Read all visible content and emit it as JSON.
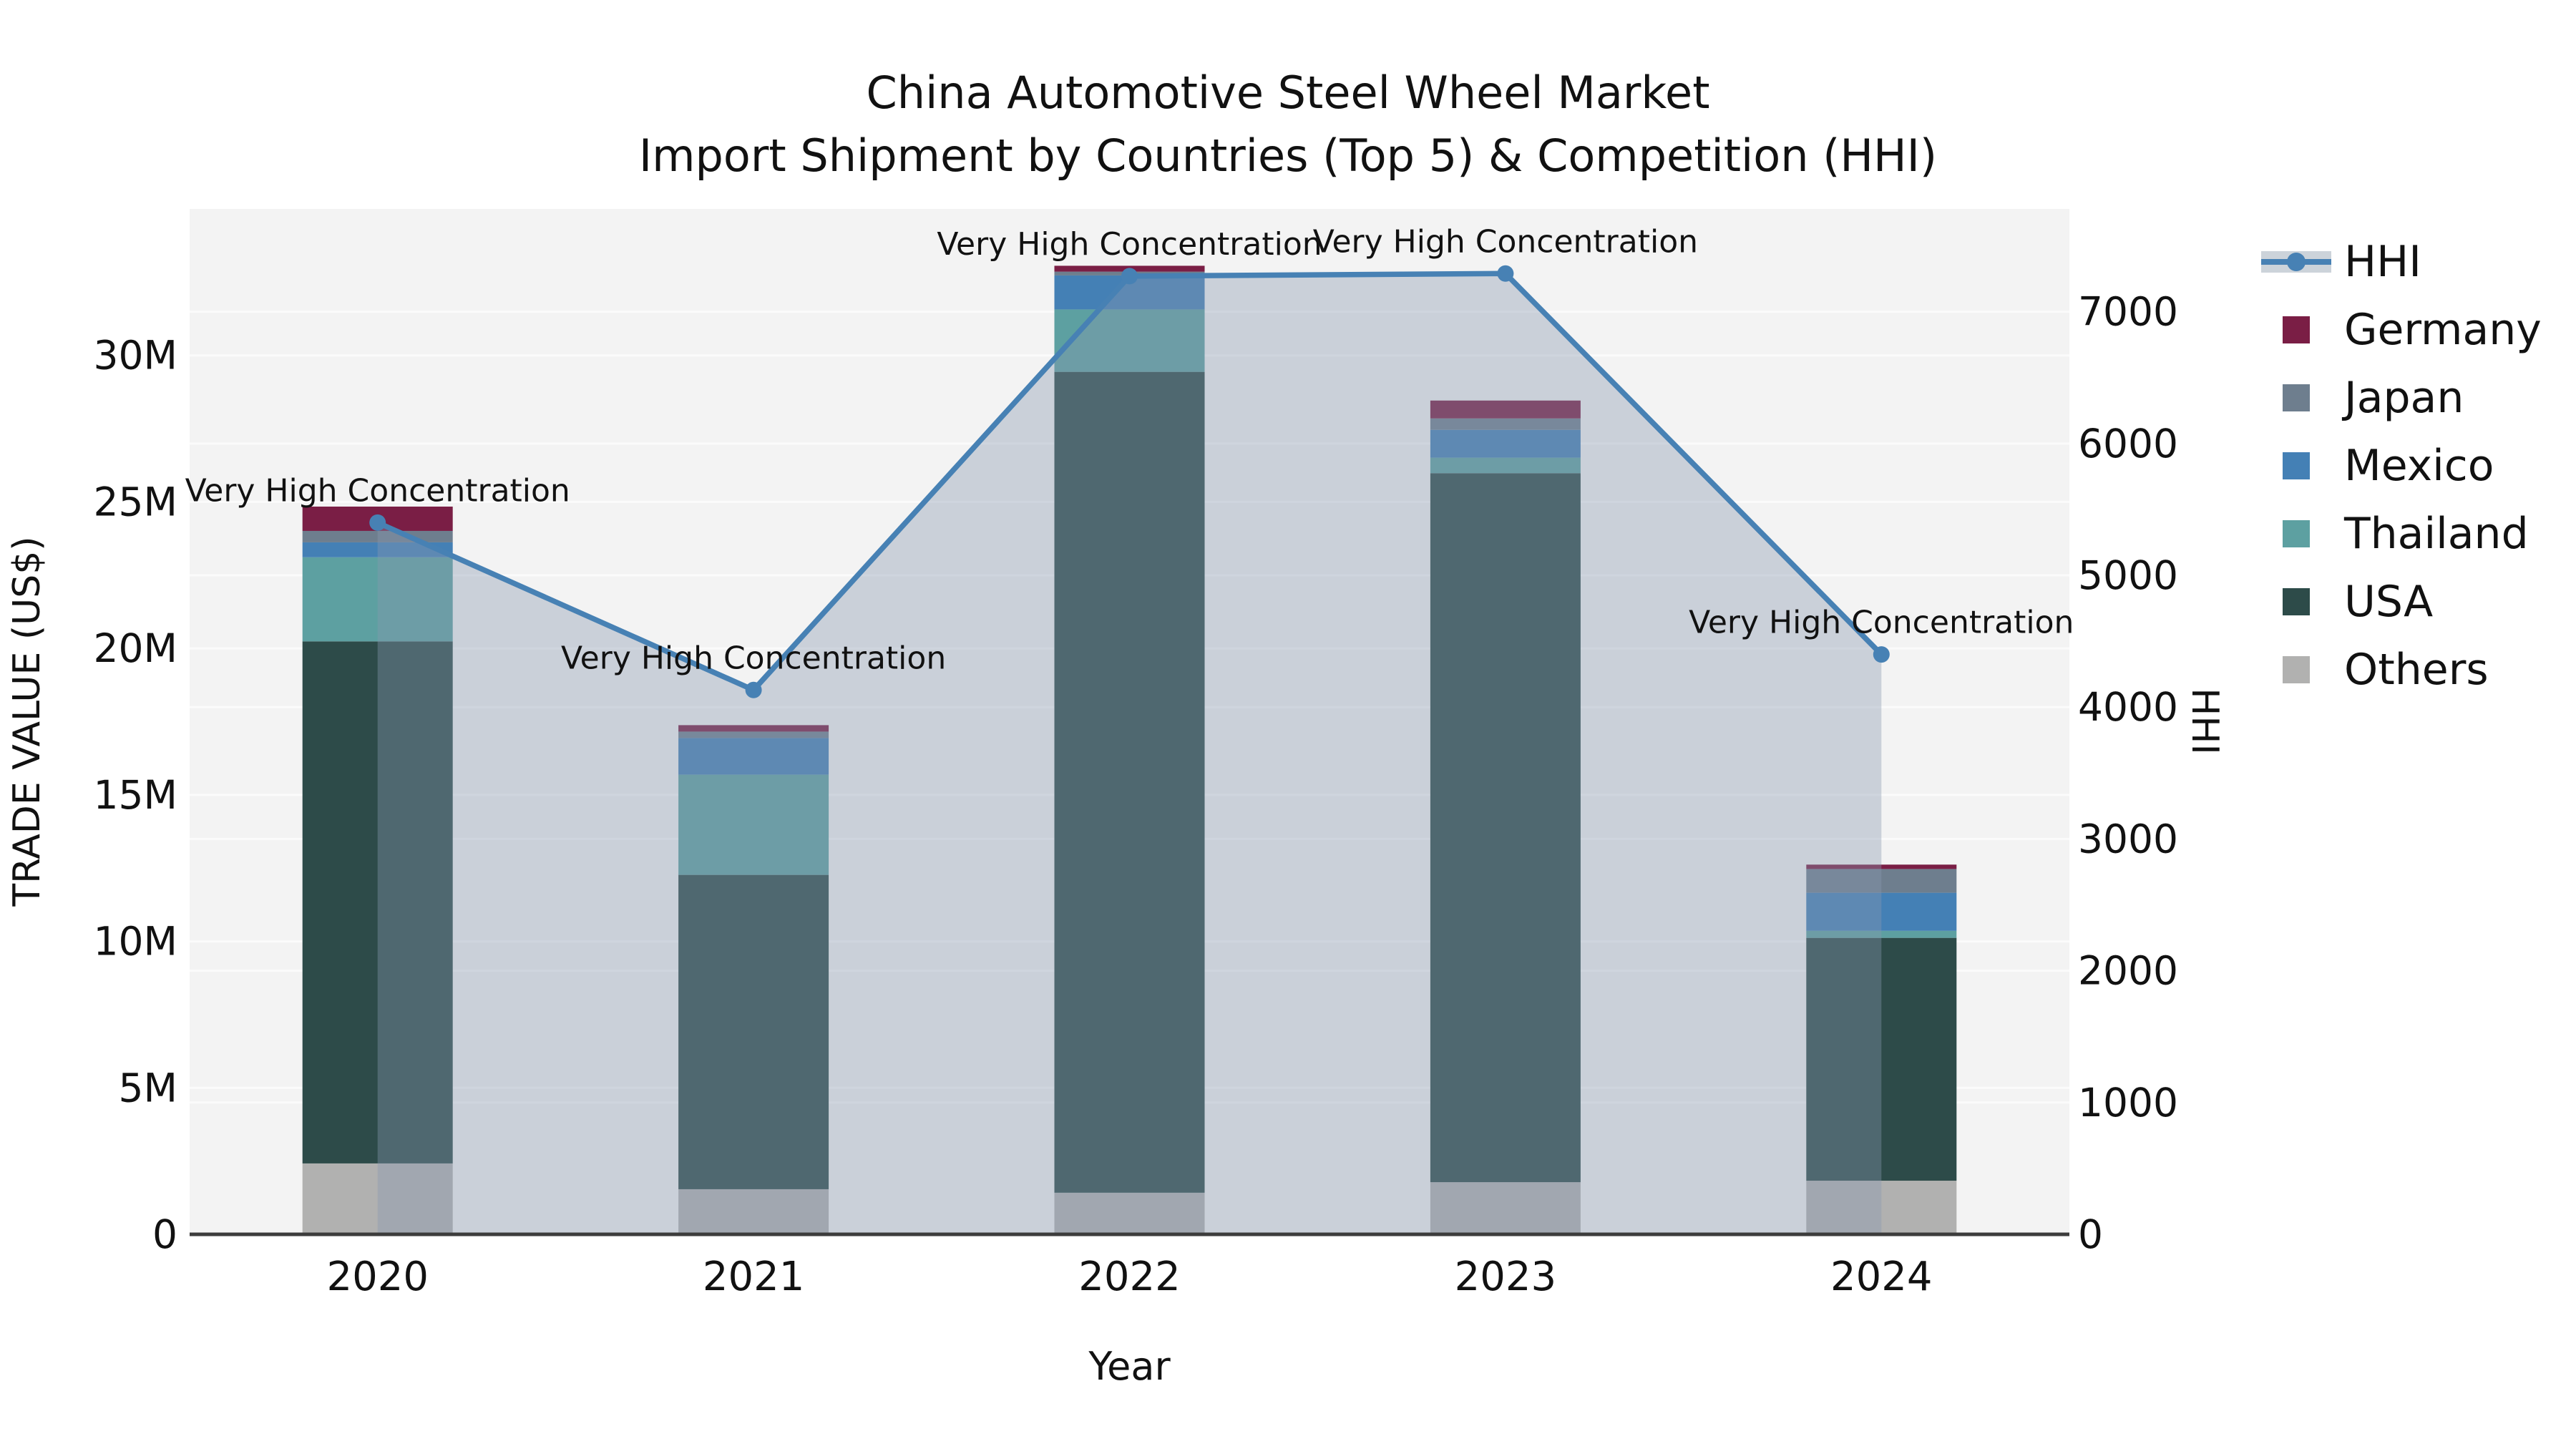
{
  "title": {
    "line1": "China Automotive Steel Wheel Market",
    "line2": "Import Shipment by Countries (Top 5) & Competition (HHI)"
  },
  "chart_data": {
    "type": "bar",
    "subtype": "stacked-bar-with-hhi-line-overlay",
    "categories": [
      "2020",
      "2021",
      "2022",
      "2023",
      "2024"
    ],
    "xlabel": "Year",
    "ylabel_left": "TRADE VALUE (US$)",
    "ylabel_right": "HHI",
    "unit_left": "millions of US$",
    "stack_order_bottom_to_top": [
      "Others",
      "USA",
      "Thailand",
      "Mexico",
      "Japan",
      "Germany"
    ],
    "series": [
      {
        "name": "Germany",
        "color": "#7A1E45",
        "values_musd": [
          0.83,
          0.22,
          0.2,
          0.61,
          0.15
        ]
      },
      {
        "name": "Japan",
        "color": "#6E7E8E",
        "values_musd": [
          0.39,
          0.22,
          0.13,
          0.39,
          0.81
        ]
      },
      {
        "name": "Mexico",
        "color": "#4480B5",
        "values_musd": [
          0.51,
          1.25,
          1.16,
          0.95,
          1.3
        ]
      },
      {
        "name": "Thailand",
        "color": "#5DA0A1",
        "values_musd": [
          2.87,
          3.42,
          2.13,
          0.53,
          0.24
        ]
      },
      {
        "name": "USA",
        "color": "#2D4B49",
        "values_musd": [
          17.82,
          10.73,
          28.02,
          24.2,
          8.29
        ]
      },
      {
        "name": "Others",
        "color": "#B1B1B0",
        "values_musd": [
          2.42,
          1.54,
          1.42,
          1.78,
          1.83
        ]
      }
    ],
    "bar_totals_musd": [
      24.84,
      17.38,
      33.06,
      28.46,
      12.62
    ],
    "line_series": {
      "name": "HHI",
      "color": "#4781B4",
      "area_fill": "rgba(137,152,175,0.38)",
      "values": [
        5400,
        4130,
        7270,
        7290,
        4400
      ]
    },
    "annotations": [
      "Very High Concentration",
      "Very High Concentration",
      "Very High Concentration",
      "Very High Concentration",
      "Very High Concentration"
    ],
    "axes": {
      "left": {
        "ticks": [
          0,
          5,
          10,
          15,
          20,
          25,
          30
        ],
        "tick_labels": [
          "0",
          "5M",
          "10M",
          "15M",
          "20M",
          "25M",
          "30M"
        ],
        "max": 35
      },
      "right": {
        "ticks": [
          0,
          1000,
          2000,
          3000,
          4000,
          5000,
          6000,
          7000
        ],
        "tick_labels": [
          "0",
          "1000",
          "2000",
          "3000",
          "4000",
          "5000",
          "6000",
          "7000"
        ],
        "max": 7780
      }
    },
    "grid": true,
    "legend_position": "right",
    "plot_bg": "#F3F3F3",
    "grid_color": "#FBFBFB",
    "axis_line_color": "#3C3C3C",
    "text_color": "#111111"
  },
  "legend": {
    "items": [
      {
        "label": "HHI",
        "type": "line",
        "line_color": "#4781B4",
        "patch_color": "#CCD3DA"
      },
      {
        "label": "Germany",
        "type": "swatch",
        "color": "#7A1E45"
      },
      {
        "label": "Japan",
        "type": "swatch",
        "color": "#6E7E8E"
      },
      {
        "label": "Mexico",
        "type": "swatch",
        "color": "#4480B5"
      },
      {
        "label": "Thailand",
        "type": "swatch",
        "color": "#5DA0A1"
      },
      {
        "label": "USA",
        "type": "swatch",
        "color": "#2D4B49"
      },
      {
        "label": "Others",
        "type": "swatch",
        "color": "#B1B1B0"
      }
    ]
  }
}
